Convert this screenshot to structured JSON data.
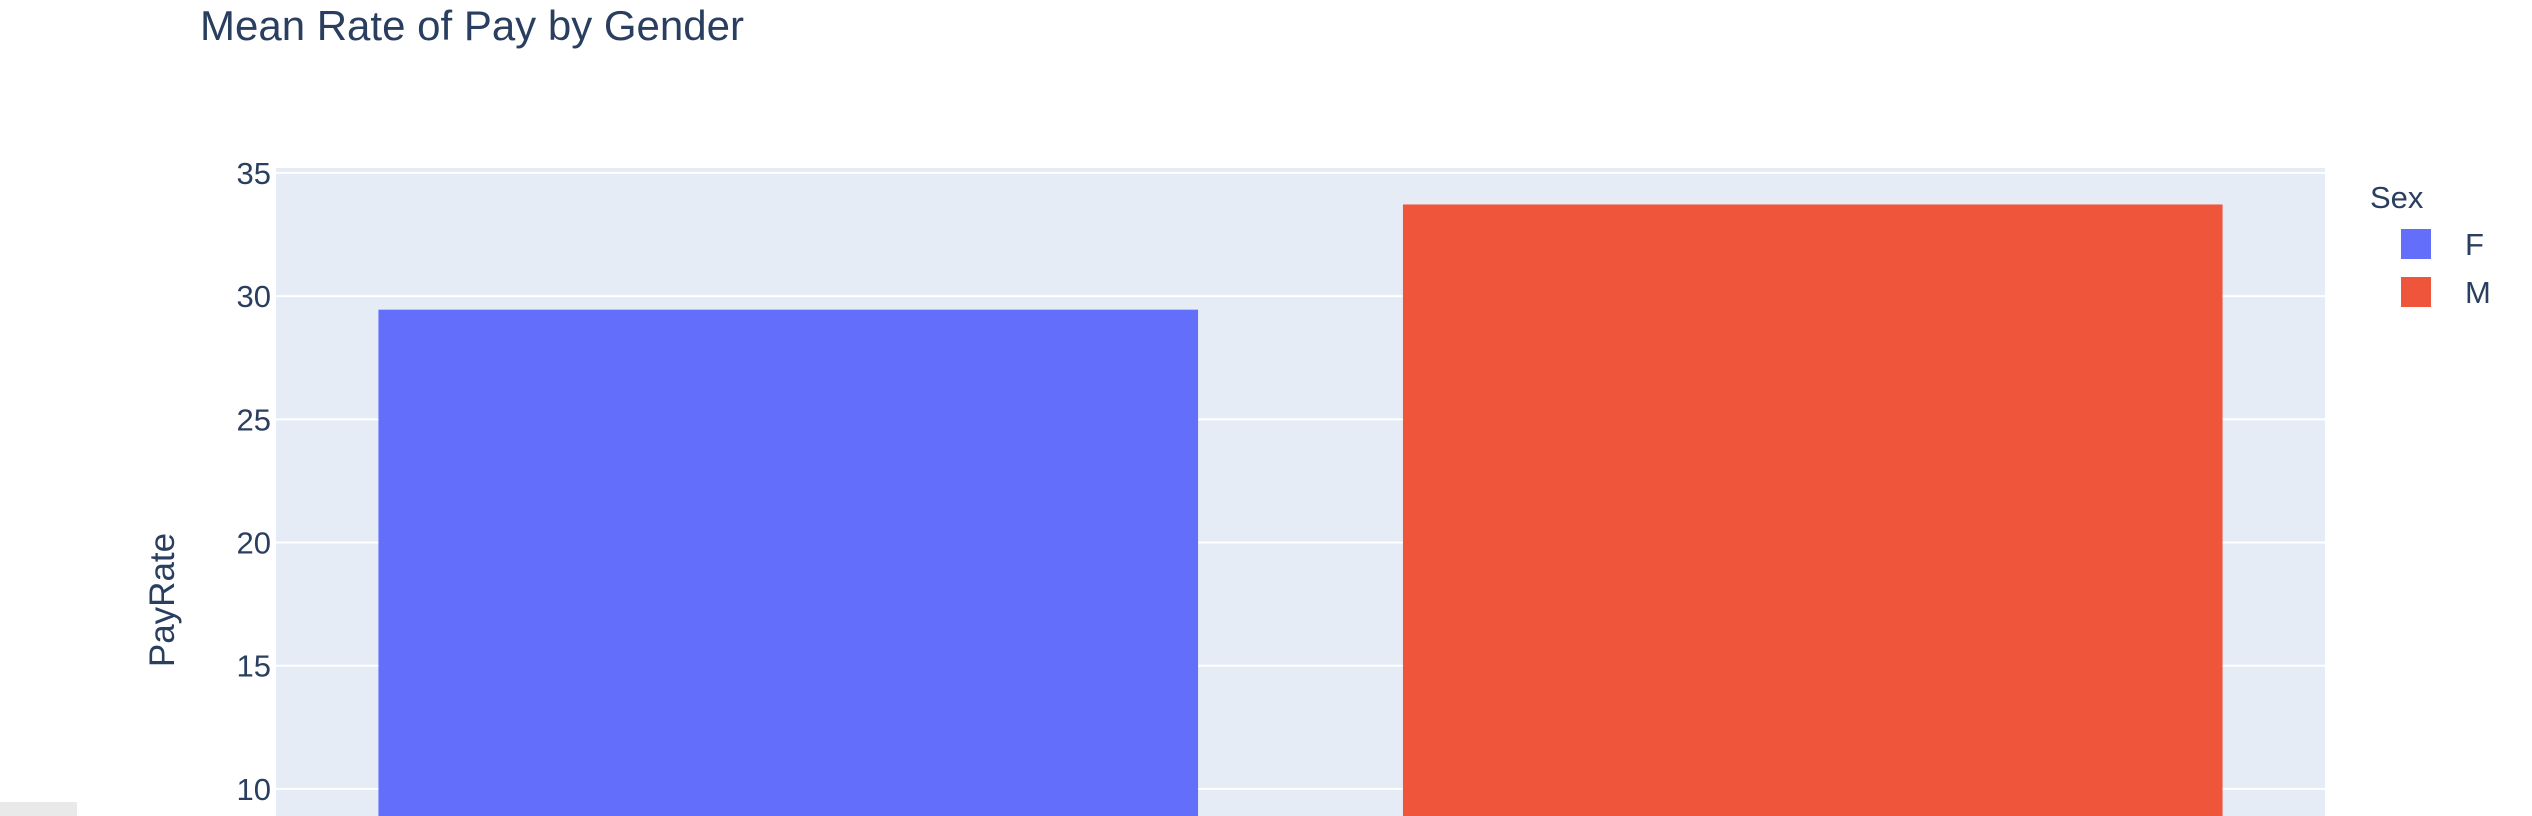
{
  "chart_data": {
    "type": "bar",
    "title": "Mean Rate of Pay by Gender",
    "xlabel": "",
    "ylabel": "PayRate",
    "categories": [
      "F",
      "M"
    ],
    "values": [
      29.45,
      33.72
    ],
    "colors": [
      "#636efa",
      "#ef553b"
    ],
    "yticks": [
      10,
      15,
      20,
      25,
      30,
      35
    ],
    "ylim": [
      8.9,
      35.2
    ],
    "grid": true,
    "legend": {
      "title": "Sex",
      "position": "top-right",
      "items": [
        {
          "label": "F",
          "color": "#636efa"
        },
        {
          "label": "M",
          "color": "#ef553b"
        }
      ]
    },
    "plot_background": "#e5ecf6",
    "text_color": "#2a3f5f"
  }
}
